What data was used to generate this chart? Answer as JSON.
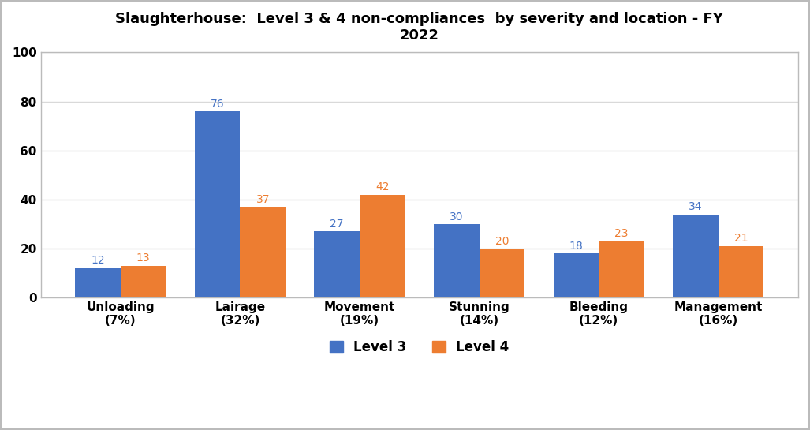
{
  "title": "Slaughterhouse:  Level 3 & 4 non-compliances  by severity and location - FY\n2022",
  "categories": [
    "Unloading\n(7%)",
    "Lairage\n(32%)",
    "Movement\n(19%)",
    "Stunning\n(14%)",
    "Bleeding\n(12%)",
    "Management\n(16%)"
  ],
  "level3_values": [
    12,
    76,
    27,
    30,
    18,
    34
  ],
  "level4_values": [
    13,
    37,
    42,
    20,
    23,
    21
  ],
  "level3_color": "#4472C4",
  "level4_color": "#ED7D31",
  "bar_width": 0.38,
  "ylim": [
    0,
    100
  ],
  "yticks": [
    0,
    20,
    40,
    60,
    80,
    100
  ],
  "legend_label3": "Level 3",
  "legend_label4": "Level 4",
  "background_color": "#ffffff",
  "outer_border_color": "#bbbbbb",
  "grid_color": "#d9d9d9",
  "title_fontsize": 13,
  "tick_fontsize": 11,
  "value_fontsize": 10,
  "legend_fontsize": 12
}
